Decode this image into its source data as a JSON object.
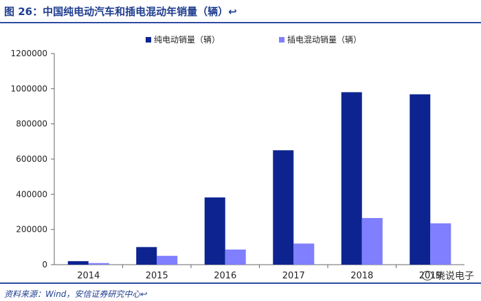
{
  "figure_title": "图 26：中国纯电动汽车和插电混动年销量（辆）↩",
  "source": "资料来源：Wind，安信证券研究中心↩",
  "watermark": "晓说电子",
  "icons": {
    "watermark": "wechat-icon"
  },
  "colors": {
    "bev": "#0d2490",
    "phev": "#7f7fff",
    "header": "#1f3d8f"
  },
  "chart_data": {
    "type": "bar",
    "categories": [
      "2014",
      "2015",
      "2016",
      "2017",
      "2018",
      "2019"
    ],
    "series": [
      {
        "name": "纯电动销量（辆）",
        "values": [
          20000,
          100000,
          382000,
          650000,
          980000,
          968000
        ]
      },
      {
        "name": "插电混动销量（辆）",
        "values": [
          9000,
          50000,
          86000,
          120000,
          265000,
          235000
        ]
      }
    ],
    "ylim": [
      0,
      1200000
    ],
    "yticks": [
      "0",
      "200000",
      "400000",
      "600000",
      "800000",
      "1000000",
      "1200000"
    ],
    "grid": false,
    "legend": "top"
  }
}
